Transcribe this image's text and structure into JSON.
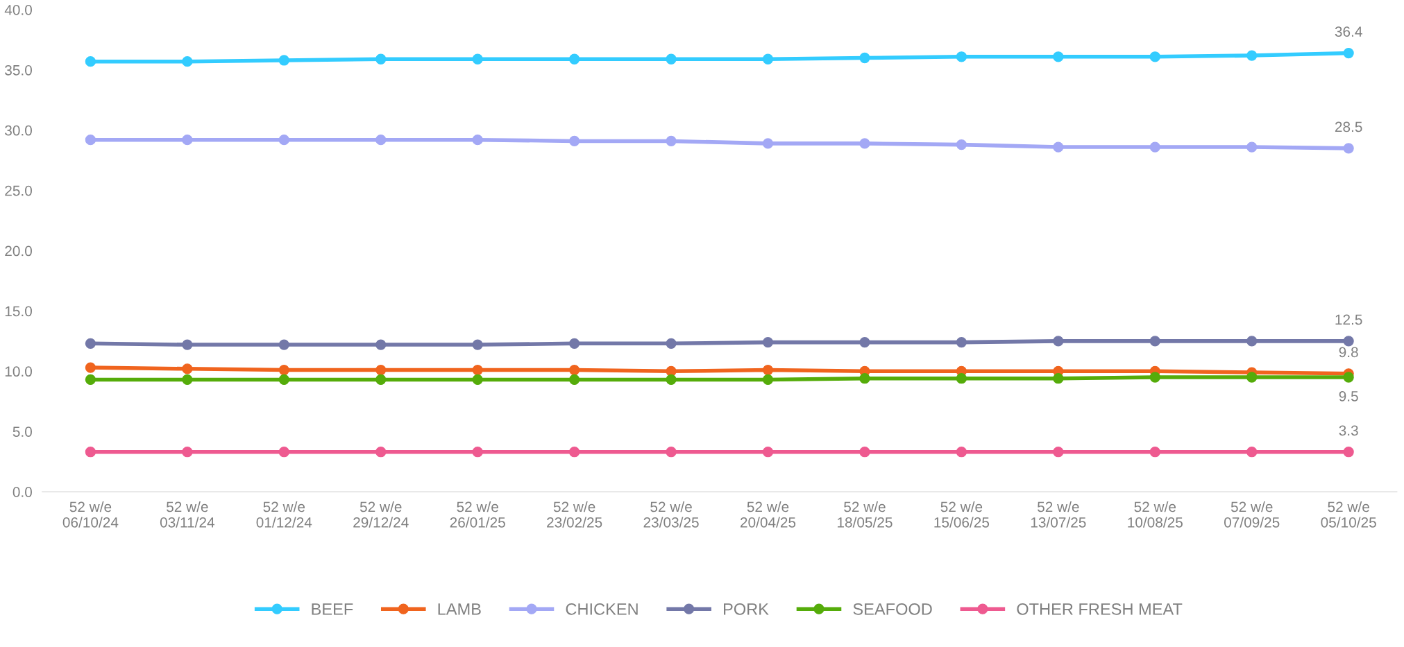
{
  "chart_data": {
    "type": "line",
    "categories": [
      "52 w/e\n06/10/24",
      "52 w/e\n03/11/24",
      "52 w/e\n01/12/24",
      "52 w/e\n29/12/24",
      "52 w/e\n26/01/25",
      "52 w/e\n23/02/25",
      "52 w/e\n23/03/25",
      "52 w/e\n20/04/25",
      "52 w/e\n18/05/25",
      "52 w/e\n15/06/25",
      "52 w/e\n13/07/25",
      "52 w/e\n10/08/25",
      "52 w/e\n07/09/25",
      "52 w/e\n05/10/25"
    ],
    "series": [
      {
        "name": "BEEF",
        "color": "#33ccff",
        "values": [
          35.7,
          35.7,
          35.8,
          35.9,
          35.9,
          35.9,
          35.9,
          35.9,
          36.0,
          36.1,
          36.1,
          36.1,
          36.2,
          36.4
        ],
        "value_labels": [
          null,
          null,
          null,
          null,
          null,
          null,
          null,
          null,
          null,
          null,
          null,
          null,
          null,
          "36.4"
        ]
      },
      {
        "name": "LAMB",
        "color": "#f0641e",
        "values": [
          10.3,
          10.2,
          10.1,
          10.1,
          10.1,
          10.1,
          10.0,
          10.1,
          10.0,
          10.0,
          10.0,
          10.0,
          9.9,
          9.8
        ],
        "value_labels": [
          null,
          null,
          null,
          null,
          null,
          null,
          null,
          null,
          null,
          null,
          null,
          null,
          null,
          "9.8"
        ]
      },
      {
        "name": "CHICKEN",
        "color": "#a3a8f5",
        "values": [
          29.2,
          29.2,
          29.2,
          29.2,
          29.2,
          29.1,
          29.1,
          28.9,
          28.9,
          28.8,
          28.6,
          28.6,
          28.6,
          28.5
        ],
        "value_labels": [
          null,
          null,
          null,
          null,
          null,
          null,
          null,
          null,
          null,
          null,
          null,
          null,
          null,
          "28.5"
        ]
      },
      {
        "name": "PORK",
        "color": "#7378a8",
        "values": [
          12.3,
          12.2,
          12.2,
          12.2,
          12.2,
          12.3,
          12.3,
          12.4,
          12.4,
          12.4,
          12.5,
          12.5,
          12.5,
          12.5
        ],
        "value_labels": [
          null,
          null,
          null,
          null,
          null,
          null,
          null,
          null,
          null,
          null,
          null,
          null,
          null,
          "12.5"
        ]
      },
      {
        "name": "SEAFOOD",
        "color": "#55ac0a",
        "values": [
          9.3,
          9.3,
          9.3,
          9.3,
          9.3,
          9.3,
          9.3,
          9.3,
          9.4,
          9.4,
          9.4,
          9.5,
          9.5,
          9.5
        ],
        "value_labels": [
          null,
          null,
          null,
          null,
          null,
          null,
          null,
          null,
          null,
          null,
          null,
          null,
          null,
          "9.5"
        ]
      },
      {
        "name": "OTHER FRESH MEAT",
        "color": "#ee5a90",
        "values": [
          3.3,
          3.3,
          3.3,
          3.3,
          3.3,
          3.3,
          3.3,
          3.3,
          3.3,
          3.3,
          3.3,
          3.3,
          3.3,
          3.3
        ],
        "value_labels": [
          null,
          null,
          null,
          null,
          null,
          null,
          null,
          null,
          null,
          null,
          null,
          null,
          null,
          "3.3"
        ]
      }
    ],
    "ylim": [
      0,
      40
    ],
    "yticks": [
      {
        "value": 0,
        "label": "0.0"
      },
      {
        "value": 5,
        "label": "5.0"
      },
      {
        "value": 10,
        "label": "10.0"
      },
      {
        "value": 15,
        "label": "15.0"
      },
      {
        "value": 20,
        "label": "20.0"
      },
      {
        "value": 25,
        "label": "25.0"
      },
      {
        "value": 30,
        "label": "30.0"
      },
      {
        "value": 35,
        "label": "35.0"
      },
      {
        "value": 40,
        "label": "40.0"
      }
    ],
    "grid": false,
    "legend": "bottom",
    "marker": "circle",
    "line_style": "solid"
  }
}
